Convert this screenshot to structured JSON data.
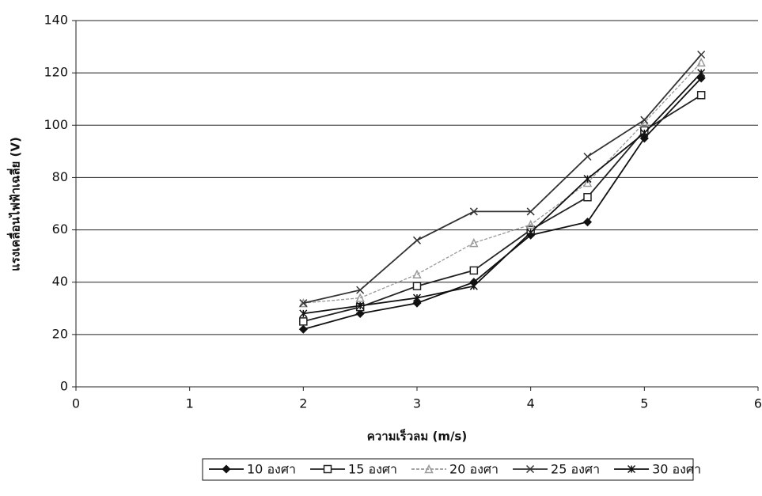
{
  "chart_data": {
    "type": "line",
    "x_label": "ความเร็วลม (m/s)",
    "y_label": "แรงเคลื่อนไฟฟ้าเฉลี่ย (V)",
    "x": [
      2,
      2.5,
      3,
      3.5,
      4,
      4.5,
      5,
      5.5
    ],
    "series": [
      {
        "name": "10 องศา",
        "color": "#111111",
        "marker": "diamond",
        "dash": false,
        "values": [
          22,
          28,
          32,
          40,
          58,
          63,
          95,
          118
        ]
      },
      {
        "name": "15 องศา",
        "color": "#222222",
        "marker": "square",
        "dash": false,
        "values": [
          25,
          30.5,
          38.5,
          44.5,
          60,
          72.5,
          98,
          111.5
        ]
      },
      {
        "name": "20 องศา",
        "color": "#999999",
        "marker": "triangle",
        "dash": true,
        "values": [
          32,
          34,
          43,
          55,
          62,
          78,
          101,
          124
        ]
      },
      {
        "name": "25 องศา",
        "color": "#333333",
        "marker": "cross",
        "dash": false,
        "values": [
          32,
          37,
          56,
          67,
          67,
          88,
          102,
          127
        ]
      },
      {
        "name": "30 องศา",
        "color": "#111111",
        "marker": "star",
        "dash": false,
        "values": [
          28,
          31,
          34,
          38.5,
          59,
          79.5,
          97,
          120
        ]
      }
    ],
    "xlim": [
      0,
      6
    ],
    "xticks": [
      0,
      1,
      2,
      3,
      4,
      5,
      6
    ],
    "ylim": [
      0,
      140
    ],
    "yticks": [
      0,
      20,
      40,
      60,
      80,
      100,
      120,
      140
    ],
    "grid": true,
    "legend": "bottom"
  }
}
